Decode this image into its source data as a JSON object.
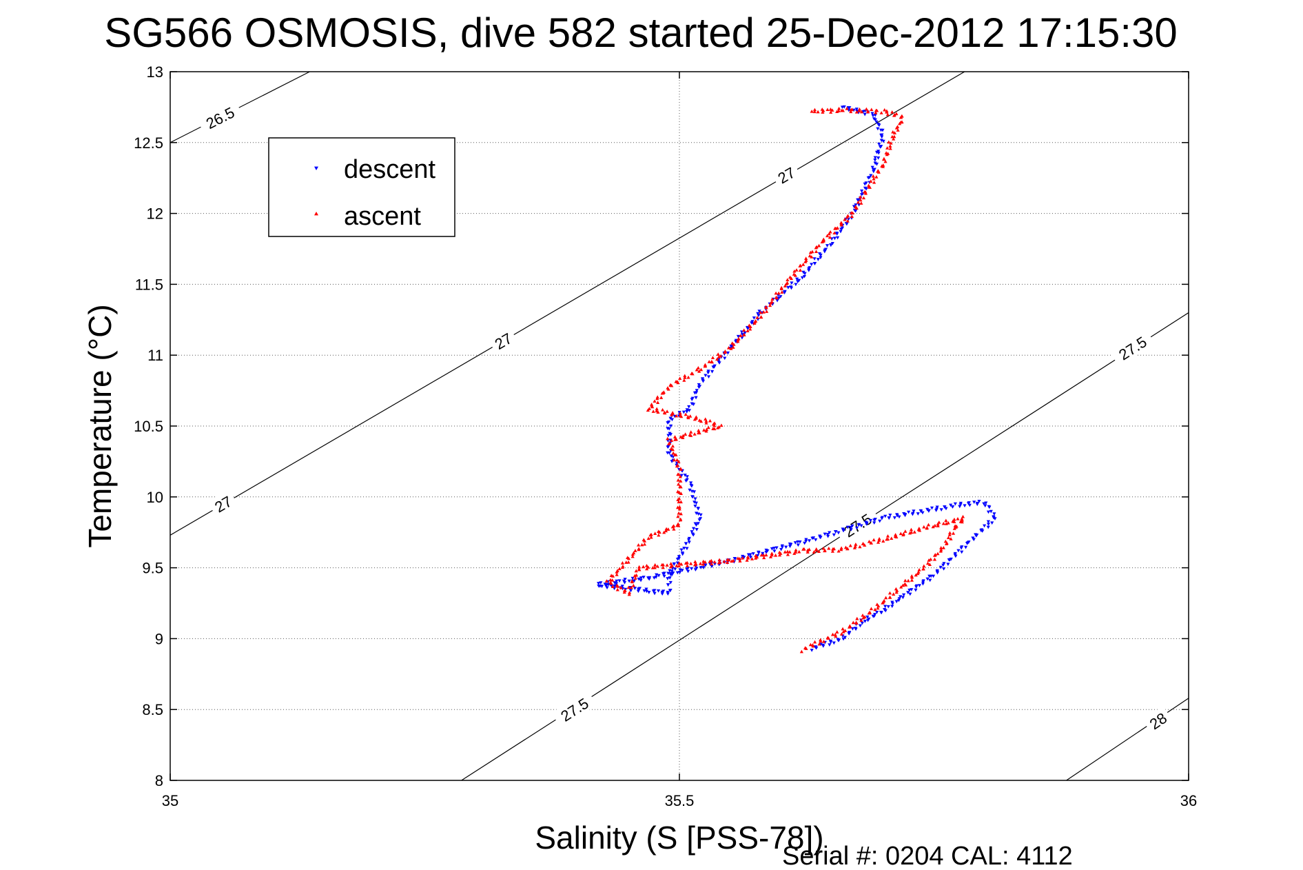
{
  "chart_data": {
    "type": "scatter",
    "title": "SG566 OSMOSIS, dive 582 started 25-Dec-2012 17:15:30",
    "xlabel": "Salinity (S [PSS-78])",
    "ylabel": "Temperature (°C)",
    "xlim": [
      35,
      36
    ],
    "ylim": [
      8,
      13
    ],
    "x_ticks": [
      35,
      35.5,
      36
    ],
    "x_tick_labels": [
      "35",
      "35.5",
      "36"
    ],
    "y_ticks": [
      8,
      8.5,
      9,
      9.5,
      10,
      10.5,
      11,
      11.5,
      12,
      12.5,
      13
    ],
    "y_tick_labels": [
      "8",
      "8.5",
      "9",
      "9.5",
      "10",
      "10.5",
      "11",
      "11.5",
      "12",
      "12.5",
      "13"
    ],
    "grid": "dotted",
    "legend_position": "top-left",
    "series": [
      {
        "name": "descent",
        "marker": "down-triangle",
        "color": "#0000ff",
        "points": [
          [
            35.63,
            8.93
          ],
          [
            35.66,
            9.0
          ],
          [
            35.68,
            9.12
          ],
          [
            35.7,
            9.2
          ],
          [
            35.72,
            9.3
          ],
          [
            35.75,
            9.45
          ],
          [
            35.79,
            9.72
          ],
          [
            35.81,
            9.85
          ],
          [
            35.8,
            9.96
          ],
          [
            35.78,
            9.95
          ],
          [
            35.7,
            9.85
          ],
          [
            35.63,
            9.7
          ],
          [
            35.55,
            9.55
          ],
          [
            35.47,
            9.43
          ],
          [
            35.42,
            9.38
          ],
          [
            35.49,
            9.32
          ],
          [
            35.49,
            9.45
          ],
          [
            35.51,
            9.7
          ],
          [
            35.52,
            9.85
          ],
          [
            35.51,
            10.1
          ],
          [
            35.49,
            10.3
          ],
          [
            35.49,
            10.55
          ],
          [
            35.51,
            10.62
          ],
          [
            35.52,
            10.8
          ],
          [
            35.55,
            11.05
          ],
          [
            35.58,
            11.3
          ],
          [
            35.62,
            11.55
          ],
          [
            35.65,
            11.8
          ],
          [
            35.67,
            12.0
          ],
          [
            35.69,
            12.3
          ],
          [
            35.7,
            12.55
          ],
          [
            35.69,
            12.7
          ],
          [
            35.66,
            12.75
          ]
        ]
      },
      {
        "name": "ascent",
        "marker": "up-triangle",
        "color": "#ff0000",
        "points": [
          [
            35.62,
            8.92
          ],
          [
            35.66,
            9.05
          ],
          [
            35.69,
            9.2
          ],
          [
            35.72,
            9.38
          ],
          [
            35.74,
            9.5
          ],
          [
            35.76,
            9.65
          ],
          [
            35.77,
            9.78
          ],
          [
            35.78,
            9.85
          ],
          [
            35.75,
            9.8
          ],
          [
            35.7,
            9.7
          ],
          [
            35.66,
            9.63
          ],
          [
            35.62,
            9.62
          ],
          [
            35.55,
            9.55
          ],
          [
            35.46,
            9.5
          ],
          [
            35.45,
            9.32
          ],
          [
            35.43,
            9.4
          ],
          [
            35.47,
            9.72
          ],
          [
            35.5,
            9.8
          ],
          [
            35.5,
            10.0
          ],
          [
            35.5,
            10.2
          ],
          [
            35.49,
            10.4
          ],
          [
            35.54,
            10.5
          ],
          [
            35.52,
            10.55
          ],
          [
            35.47,
            10.62
          ],
          [
            35.49,
            10.78
          ],
          [
            35.52,
            10.9
          ],
          [
            35.55,
            11.05
          ],
          [
            35.58,
            11.28
          ],
          [
            35.61,
            11.55
          ],
          [
            35.64,
            11.8
          ],
          [
            35.67,
            12.0
          ],
          [
            35.7,
            12.35
          ],
          [
            35.71,
            12.55
          ],
          [
            35.72,
            12.68
          ],
          [
            35.7,
            12.72
          ],
          [
            35.66,
            12.73
          ],
          [
            35.63,
            12.72
          ]
        ]
      }
    ],
    "density_contours": [
      {
        "label": "26.5",
        "start": [
          35,
          12.5
        ],
        "end": [
          35.137,
          13
        ],
        "labels_at": [
          [
            35.049,
            12.675
          ]
        ]
      },
      {
        "label": "27",
        "start": [
          35,
          9.73
        ],
        "end": [
          35.78,
          13
        ],
        "labels_at": [
          [
            35.052,
            9.95
          ],
          [
            35.327,
            11.1
          ],
          [
            35.605,
            12.27
          ]
        ]
      },
      {
        "label": "27.5",
        "start": [
          35.286,
          8
        ],
        "end": [
          36,
          11.3
        ],
        "labels_at": [
          [
            35.397,
            8.5
          ],
          [
            35.675,
            9.8
          ],
          [
            35.945,
            11.05
          ]
        ]
      },
      {
        "label": "28",
        "start": [
          35.88,
          8
        ],
        "end": [
          36,
          8.58
        ],
        "labels_at": [
          [
            35.97,
            8.42
          ]
        ]
      }
    ],
    "footer": "Serial #: 0204  CAL: 4112"
  }
}
